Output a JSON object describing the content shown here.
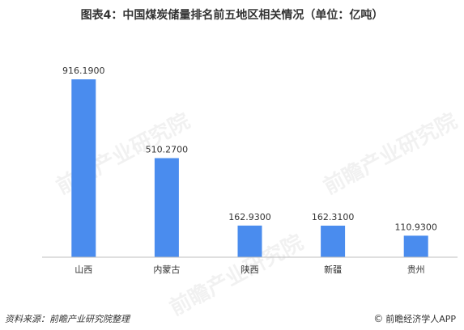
{
  "title": "图表4：中国煤炭储量排名前五地区相关情况（单位：亿吨）",
  "footer": {
    "source": "资料来源：前瞻产业研究院整理",
    "brand": "前瞻经济学人APP",
    "copyright_symbol": "©"
  },
  "watermark_text": "前瞻产业研究院",
  "colors": {
    "bar": "#4a8cee",
    "axis": "#bfbfbf",
    "text": "#333333"
  },
  "chart_data": {
    "type": "bar",
    "title": "图表4：中国煤炭储量排名前五地区相关情况（单位：亿吨）",
    "categories": [
      "山西",
      "内蒙古",
      "陕西",
      "新疆",
      "贵州"
    ],
    "values": [
      916.19,
      510.27,
      162.93,
      162.31,
      110.93
    ],
    "value_labels": [
      "916.1900",
      "510.2700",
      "162.9300",
      "162.3100",
      "110.9300"
    ],
    "xlabel": "",
    "ylabel": "",
    "ylim": [
      0,
      1000
    ],
    "grid": false,
    "legend": "none"
  }
}
